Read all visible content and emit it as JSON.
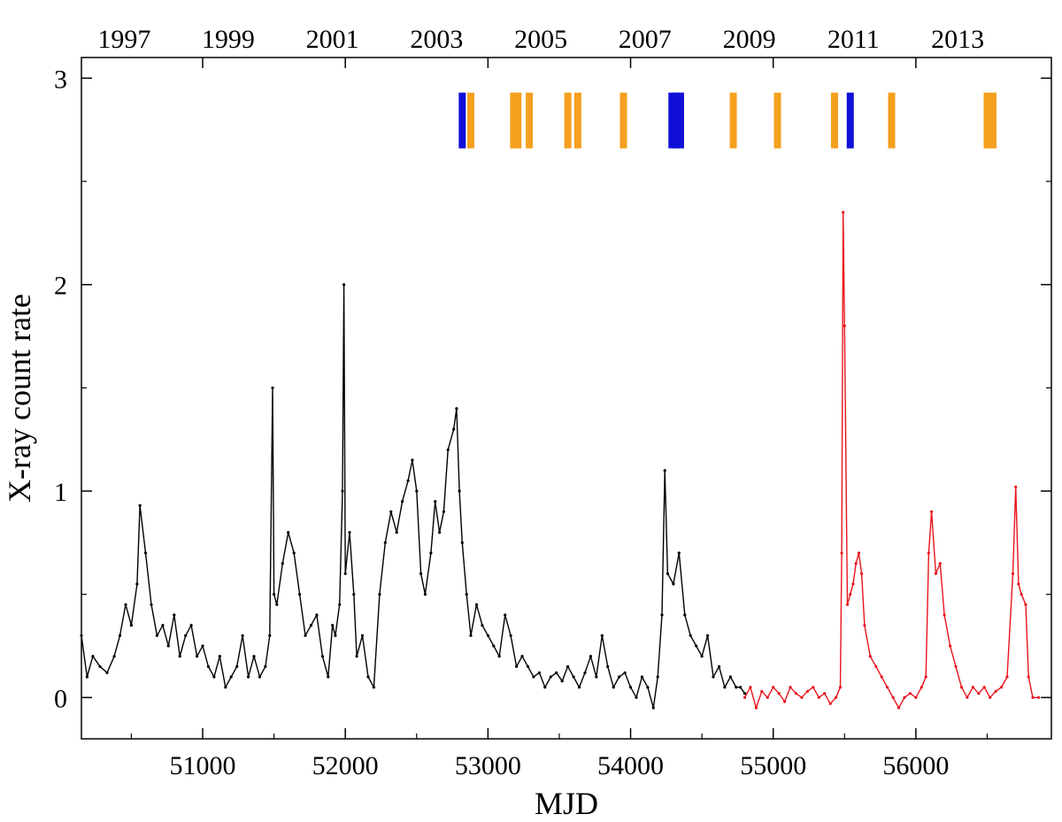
{
  "chart_data": {
    "type": "line",
    "xlabel": "MJD",
    "ylabel": "X-ray count rate",
    "xlim": [
      50150,
      56950
    ],
    "ylim": [
      -0.2,
      3.1
    ],
    "x_ticks": [
      51000,
      52000,
      53000,
      54000,
      55000,
      56000
    ],
    "y_ticks": [
      0,
      1,
      2,
      3
    ],
    "top_axis_years": [
      "1997",
      "1999",
      "2001",
      "2003",
      "2005",
      "2007",
      "2009",
      "2011",
      "2013"
    ],
    "top_axis_year_mjd": [
      50450,
      51179,
      51910,
      52640,
      53371,
      54101,
      54832,
      55562,
      56293
    ],
    "series": [
      {
        "color": "#000000",
        "x": [
          50150,
          50190,
          50230,
          50280,
          50330,
          50380,
          50420,
          50460,
          50500,
          50540,
          50560,
          50600,
          50640,
          50680,
          50720,
          50760,
          50800,
          50840,
          50880,
          50920,
          50960,
          51000,
          51040,
          51080,
          51120,
          51160,
          51200,
          51240,
          51280,
          51320,
          51360,
          51400,
          51440,
          51470,
          51490,
          51500,
          51520,
          51560,
          51600,
          51640,
          51680,
          51720,
          51760,
          51800,
          51840,
          51880,
          51910,
          51930,
          51960,
          51980,
          51990,
          52000,
          52030,
          52060,
          52080,
          52120,
          52160,
          52200,
          52240,
          52280,
          52320,
          52360,
          52400,
          52440,
          52470,
          52500,
          52530,
          52560,
          52600,
          52630,
          52660,
          52690,
          52720,
          52760,
          52780,
          52800,
          52820,
          52850,
          52880,
          52920,
          52960,
          53000,
          53040,
          53080,
          53120,
          53160,
          53200,
          53240,
          53280,
          53320,
          53360,
          53400,
          53440,
          53480,
          53520,
          53560,
          53600,
          53640,
          53680,
          53720,
          53760,
          53800,
          53840,
          53880,
          53920,
          53960,
          54000,
          54040,
          54080,
          54120,
          54160,
          54190,
          54220,
          54240,
          54260,
          54300,
          54340,
          54380,
          54420,
          54460,
          54500,
          54540,
          54580,
          54620,
          54660,
          54700,
          54740,
          54770,
          54800
        ],
        "y": [
          0.3,
          0.1,
          0.2,
          0.15,
          0.12,
          0.2,
          0.3,
          0.45,
          0.35,
          0.55,
          0.93,
          0.7,
          0.45,
          0.3,
          0.35,
          0.25,
          0.4,
          0.2,
          0.3,
          0.35,
          0.2,
          0.25,
          0.15,
          0.1,
          0.2,
          0.05,
          0.1,
          0.15,
          0.3,
          0.1,
          0.2,
          0.1,
          0.15,
          0.3,
          1.5,
          0.5,
          0.45,
          0.65,
          0.8,
          0.7,
          0.5,
          0.3,
          0.35,
          0.4,
          0.2,
          0.1,
          0.35,
          0.3,
          0.45,
          1.0,
          2.0,
          0.6,
          0.8,
          0.5,
          0.2,
          0.3,
          0.1,
          0.05,
          0.5,
          0.75,
          0.9,
          0.8,
          0.95,
          1.05,
          1.15,
          1.0,
          0.6,
          0.5,
          0.7,
          0.95,
          0.8,
          0.9,
          1.2,
          1.3,
          1.4,
          1.0,
          0.75,
          0.5,
          0.3,
          0.45,
          0.35,
          0.3,
          0.25,
          0.2,
          0.4,
          0.3,
          0.15,
          0.2,
          0.15,
          0.1,
          0.12,
          0.05,
          0.1,
          0.12,
          0.08,
          0.15,
          0.1,
          0.05,
          0.12,
          0.2,
          0.1,
          0.3,
          0.15,
          0.05,
          0.1,
          0.12,
          0.05,
          0.0,
          0.1,
          0.05,
          -0.05,
          0.1,
          0.4,
          1.1,
          0.6,
          0.55,
          0.7,
          0.4,
          0.3,
          0.25,
          0.2,
          0.3,
          0.1,
          0.15,
          0.05,
          0.1,
          0.05,
          0.05,
          0.02
        ]
      },
      {
        "color": "#e8141c",
        "x": [
          54800,
          54840,
          54880,
          54920,
          54960,
          55000,
          55040,
          55080,
          55120,
          55160,
          55200,
          55240,
          55280,
          55320,
          55360,
          55400,
          55440,
          55470,
          55480,
          55490,
          55500,
          55520,
          55540,
          55560,
          55580,
          55600,
          55620,
          55640,
          55680,
          55720,
          55760,
          55800,
          55840,
          55880,
          55920,
          55960,
          56000,
          56040,
          56070,
          56090,
          56110,
          56140,
          56170,
          56200,
          56240,
          56280,
          56320,
          56360,
          56400,
          56440,
          56480,
          56520,
          56560,
          56600,
          56640,
          56680,
          56700,
          56720,
          56740,
          56770,
          56790,
          56820,
          56860
        ],
        "y": [
          0.0,
          0.05,
          -0.05,
          0.03,
          0.0,
          0.05,
          0.02,
          -0.02,
          0.05,
          0.02,
          0.0,
          0.03,
          0.05,
          0.0,
          0.02,
          -0.03,
          0.0,
          0.05,
          0.7,
          2.35,
          1.8,
          0.45,
          0.5,
          0.55,
          0.65,
          0.7,
          0.6,
          0.35,
          0.2,
          0.15,
          0.1,
          0.05,
          0.0,
          -0.05,
          0.0,
          0.02,
          0.0,
          0.05,
          0.1,
          0.7,
          0.9,
          0.6,
          0.65,
          0.4,
          0.25,
          0.15,
          0.05,
          0.0,
          0.05,
          0.02,
          0.05,
          0.0,
          0.03,
          0.05,
          0.1,
          0.6,
          1.02,
          0.55,
          0.5,
          0.45,
          0.1,
          0.0,
          0.0
        ]
      }
    ],
    "observation_markers": [
      {
        "mjd": 52820,
        "color": "#1010d8"
      },
      {
        "mjd": 52880,
        "color": "#f5a01e"
      },
      {
        "mjd": 53180,
        "color": "#f5a01e"
      },
      {
        "mjd": 53210,
        "color": "#f5a01e"
      },
      {
        "mjd": 53290,
        "color": "#f5a01e"
      },
      {
        "mjd": 53560,
        "color": "#f5a01e"
      },
      {
        "mjd": 53630,
        "color": "#f5a01e"
      },
      {
        "mjd": 53950,
        "color": "#f5a01e"
      },
      {
        "mjd": 54290,
        "color": "#1010d8"
      },
      {
        "mjd": 54320,
        "color": "#1010d8"
      },
      {
        "mjd": 54350,
        "color": "#1010d8"
      },
      {
        "mjd": 54720,
        "color": "#f5a01e"
      },
      {
        "mjd": 55030,
        "color": "#f5a01e"
      },
      {
        "mjd": 55430,
        "color": "#f5a01e"
      },
      {
        "mjd": 55540,
        "color": "#1010d8"
      },
      {
        "mjd": 55830,
        "color": "#f5a01e"
      },
      {
        "mjd": 56500,
        "color": "#f5a01e"
      },
      {
        "mjd": 56540,
        "color": "#f5a01e"
      }
    ],
    "marker_ylim": [
      2.66,
      2.93
    ],
    "grid": false,
    "legend": "none"
  }
}
